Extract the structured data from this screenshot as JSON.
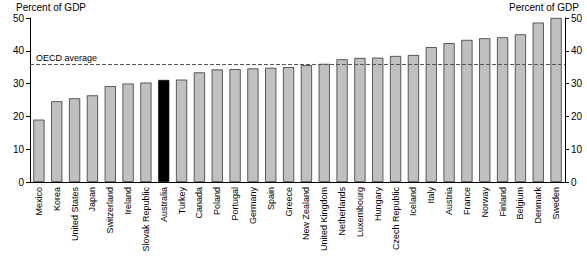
{
  "chart_data": {
    "type": "bar",
    "ylabel": "Percent of GDP",
    "y2label": "Percent of GDP",
    "categories": [
      "Mexico",
      "Korea",
      "United States",
      "Japan",
      "Switzerland",
      "Ireland",
      "Slovak Republic",
      "Australia",
      "Turkey",
      "Canada",
      "Poland",
      "Portugal",
      "Germany",
      "Spain",
      "Greece",
      "New Zealand",
      "United Kingdom",
      "Netherlands",
      "Luxembourg",
      "Hungary",
      "Czech Republic",
      "Iceland",
      "Italy",
      "Austria",
      "France",
      "Norway",
      "Finland",
      "Belgium",
      "Denmark",
      "Sweden"
    ],
    "values": [
      19.0,
      24.6,
      25.5,
      26.4,
      29.2,
      30.0,
      30.3,
      31.1,
      31.2,
      33.4,
      34.3,
      34.4,
      34.6,
      34.8,
      35.0,
      35.6,
      36.0,
      37.4,
      37.8,
      37.9,
      38.4,
      38.7,
      41.1,
      42.3,
      43.3,
      43.8,
      44.1,
      45.0,
      48.6,
      50.0
    ],
    "colors": [
      "#c0c0c0",
      "#c0c0c0",
      "#c0c0c0",
      "#c0c0c0",
      "#c0c0c0",
      "#c0c0c0",
      "#c0c0c0",
      "#000000",
      "#c0c0c0",
      "#c0c0c0",
      "#c0c0c0",
      "#c0c0c0",
      "#c0c0c0",
      "#c0c0c0",
      "#c0c0c0",
      "#c0c0c0",
      "#c0c0c0",
      "#c0c0c0",
      "#c0c0c0",
      "#c0c0c0",
      "#c0c0c0",
      "#c0c0c0",
      "#c0c0c0",
      "#c0c0c0",
      "#c0c0c0",
      "#c0c0c0",
      "#c0c0c0",
      "#c0c0c0",
      "#c0c0c0",
      "#c0c0c0"
    ],
    "average_line": {
      "label": "OECD average",
      "value": 35.8,
      "line_style": "dashed"
    },
    "ylim": [
      0,
      50
    ],
    "yticks": [
      0,
      10,
      20,
      30,
      40,
      50
    ],
    "y2lim": [
      0,
      50
    ],
    "y2ticks": [
      0,
      10,
      20,
      30,
      40,
      50
    ],
    "grid": false
  }
}
